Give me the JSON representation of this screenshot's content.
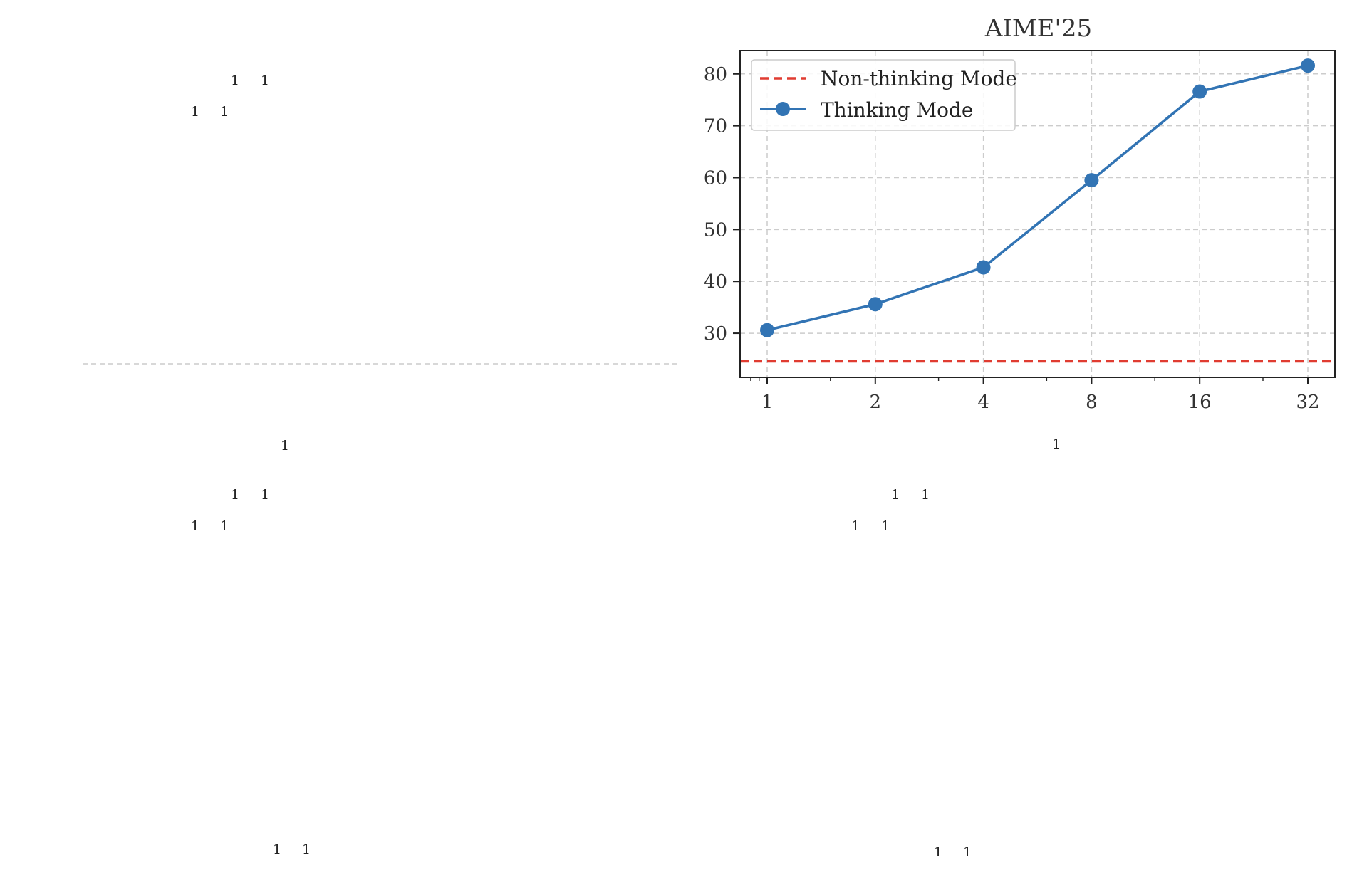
{
  "figure": {
    "stray_glyph": "1"
  },
  "chart_data": {
    "type": "line",
    "title": "AIME'25",
    "xlabel": "",
    "ylabel": "",
    "x": [
      1,
      2,
      4,
      8,
      16,
      32
    ],
    "x_tick_labels": [
      "1",
      "2",
      "4",
      "8",
      "16",
      "32"
    ],
    "x_scale": "log2",
    "y_ticks": [
      30,
      40,
      50,
      60,
      70,
      80
    ],
    "ylim": [
      21.5,
      84.5
    ],
    "grid": true,
    "legend_position": "top-left",
    "series": [
      {
        "name": "Thinking Mode",
        "style": "solid-with-markers",
        "color": "#3274b4",
        "values": [
          30.6,
          35.6,
          42.7,
          59.5,
          76.6,
          81.6
        ]
      },
      {
        "name": "Non-thinking Mode",
        "style": "dashed-horizontal",
        "color": "#e03c31",
        "value": 24.6
      }
    ]
  }
}
